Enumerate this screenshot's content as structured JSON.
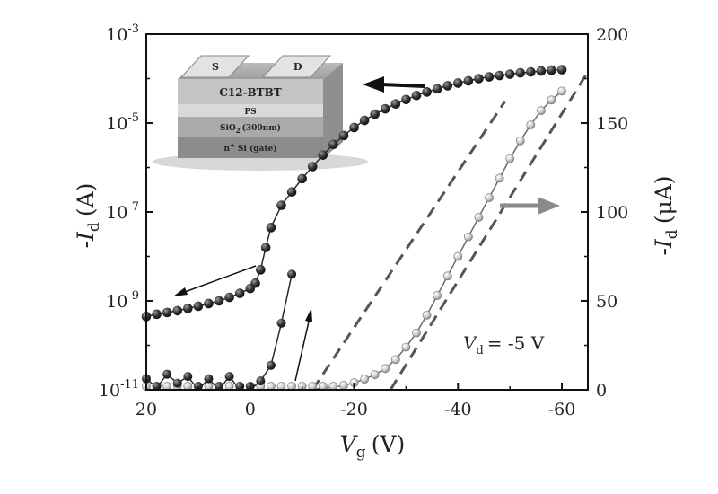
{
  "chart_data": {
    "type": "scatter",
    "x_axis": {
      "label_main": "V",
      "label_sub": "g",
      "label_unit": "(V)",
      "range": [
        20,
        -65
      ],
      "ticks": [
        20,
        0,
        -20,
        -40,
        -60
      ],
      "tick_labels": [
        "20",
        "0",
        "-20",
        "-40",
        "-60"
      ]
    },
    "y_left": {
      "label_main": "-I",
      "label_sub": "d",
      "label_unit": "(A)",
      "scale": "log",
      "range_exp": [
        -11,
        -3
      ],
      "tick_exps": [
        -11,
        -9,
        -7,
        -5,
        -3
      ],
      "tick_base": "10",
      "tick_exp_labels": [
        "-11",
        "-9",
        "-7",
        "-5",
        "-3"
      ]
    },
    "y_right": {
      "label_main": "-I",
      "label_sub": "d",
      "label_unit": "(μA)",
      "scale": "linear",
      "range": [
        0,
        200
      ],
      "ticks": [
        0,
        50,
        100,
        150,
        200
      ],
      "tick_labels": [
        "0",
        "50",
        "100",
        "150",
        "200"
      ]
    },
    "series": [
      {
        "axis": "left",
        "style": "dark-spheres",
        "color": "#2a2a2a",
        "reverse": {
          "x": [
            -60,
            -58,
            -56,
            -54,
            -52,
            -50,
            -48,
            -46,
            -44,
            -42,
            -40,
            -38,
            -36,
            -34,
            -32,
            -30,
            -28,
            -26,
            -24,
            -22,
            -20,
            -18,
            -16,
            -14,
            -12,
            -10,
            -8,
            -6,
            -4,
            -3,
            -2,
            -1,
            0,
            2,
            4,
            6,
            8,
            10,
            12,
            14,
            16,
            18,
            20
          ],
          "log_y": [
            -3.8,
            -3.81,
            -3.83,
            -3.85,
            -3.87,
            -3.9,
            -3.93,
            -3.96,
            -4.0,
            -4.05,
            -4.1,
            -4.16,
            -4.23,
            -4.3,
            -4.38,
            -4.47,
            -4.57,
            -4.68,
            -4.8,
            -4.94,
            -5.1,
            -5.28,
            -5.48,
            -5.72,
            -5.98,
            -6.25,
            -6.55,
            -6.85,
            -7.35,
            -7.8,
            -8.3,
            -8.6,
            -8.72,
            -8.83,
            -8.92,
            -9.0,
            -9.06,
            -9.12,
            -9.17,
            -9.22,
            -9.26,
            -9.3,
            -9.35
          ]
        },
        "forward": {
          "x": [
            20,
            18,
            16,
            14,
            12,
            10,
            8,
            6,
            4,
            2,
            0,
            -2,
            -4,
            -6,
            -8
          ],
          "log_y": [
            -10.75,
            -10.95,
            -10.65,
            -10.85,
            -10.7,
            -11.0,
            -10.75,
            -11.0,
            -10.7,
            -11.0,
            -11.0,
            -10.8,
            -10.45,
            -9.5,
            -8.4
          ]
        }
      },
      {
        "axis": "right",
        "style": "light-spheres",
        "color": "#9a9a9a",
        "x": [
          20,
          18,
          16,
          14,
          12,
          10,
          8,
          6,
          4,
          2,
          0,
          -2,
          -4,
          -6,
          -8,
          -10,
          -12,
          -14,
          -16,
          -18,
          -20,
          -22,
          -24,
          -26,
          -28,
          -30,
          -32,
          -34,
          -36,
          -38,
          -40,
          -42,
          -44,
          -46,
          -48,
          -50,
          -52,
          -54,
          -56,
          -58,
          -60
        ],
        "y": [
          0,
          0,
          0,
          0,
          0,
          0,
          0,
          0,
          0,
          0,
          0,
          0,
          0,
          0,
          0,
          0,
          0.3,
          0.8,
          1.5,
          2.5,
          4,
          6,
          8.5,
          12,
          17,
          24,
          32,
          42,
          53,
          64,
          75,
          86,
          97,
          108,
          119,
          130,
          140,
          149,
          157,
          163,
          168
        ]
      }
    ],
    "dashed_lines": [
      {
        "axis": "right",
        "x": [
          -12,
          -49
        ],
        "y": [
          0,
          162
        ]
      },
      {
        "axis": "right",
        "x": [
          -27,
          -65
        ],
        "y": [
          0,
          178
        ]
      }
    ],
    "annotation": {
      "main": "V",
      "sub": "d",
      "value": "= -5 V"
    },
    "inset": {
      "layers": [
        "C12-BTBT",
        "PS",
        "SiO",
        "n",
        "Si (gate)"
      ],
      "sio_sub": "2",
      "sio_tail": "(300nm)",
      "n_sup": "+",
      "contact_left": "S",
      "contact_right": "D"
    },
    "grid": false
  }
}
